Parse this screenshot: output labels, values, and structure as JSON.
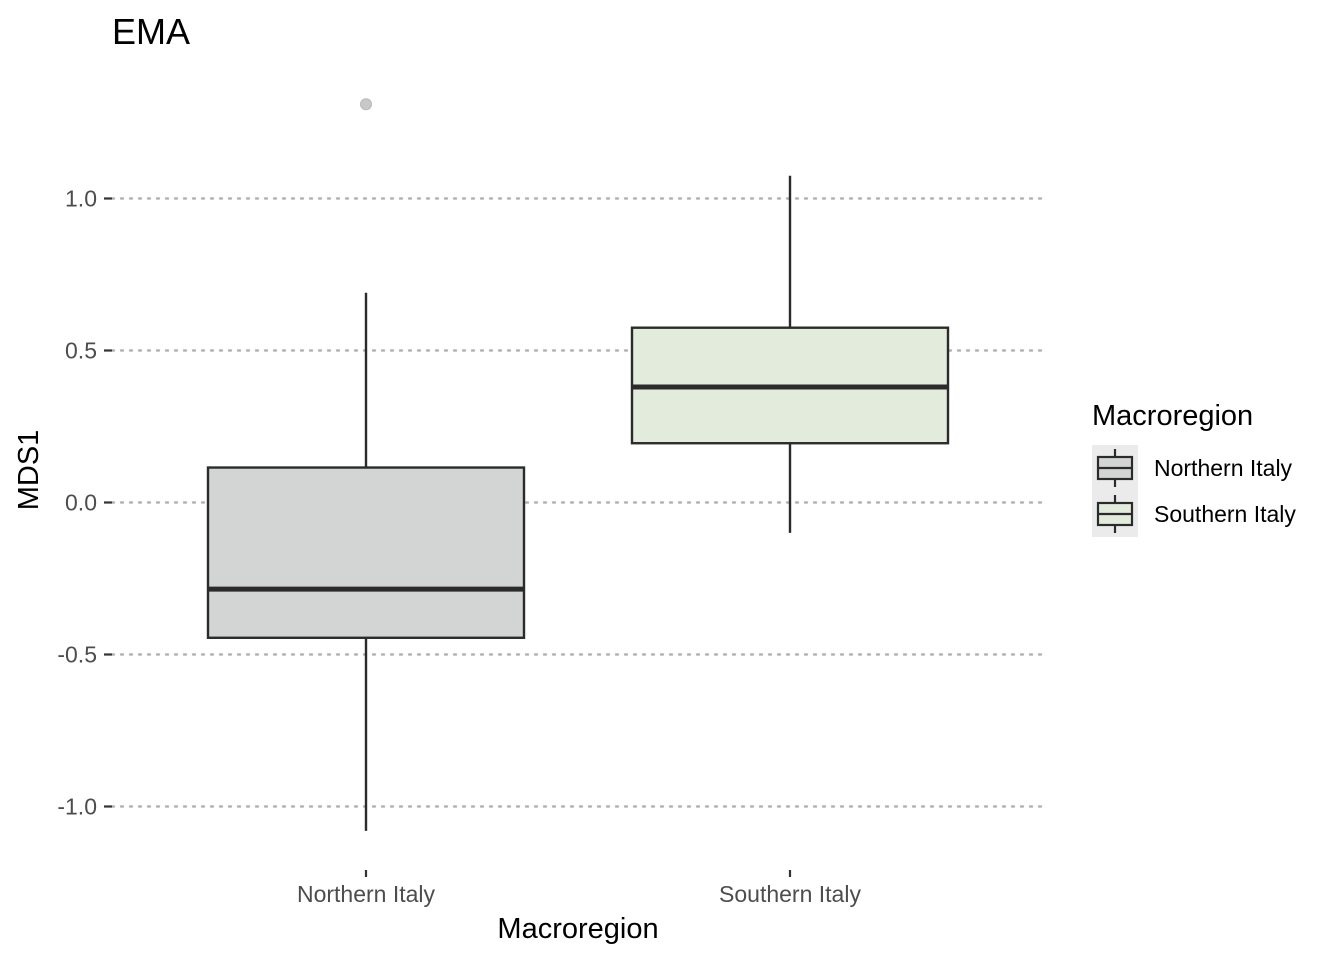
{
  "chart_data": {
    "type": "box",
    "title": "EMA",
    "xlabel": "Macroregion",
    "ylabel": "MDS1",
    "categories": [
      "Northern Italy",
      "Southern Italy"
    ],
    "y_ticks": [
      1.0,
      0.5,
      0.0,
      -0.5,
      -1.0
    ],
    "y_tick_labels": [
      "1.0",
      "0.5",
      "0.0",
      "-0.5",
      "-1.0"
    ],
    "ylim": [
      -1.15,
      1.43
    ],
    "grid": "horizontal dotted at major ticks",
    "boxes": [
      {
        "category": "Northern Italy",
        "whisker_low": -1.08,
        "q1": -0.445,
        "median": -0.285,
        "q3": 0.115,
        "whisker_high": 0.69,
        "outliers": [
          1.31
        ],
        "fill": "#d3d5d5"
      },
      {
        "category": "Southern Italy",
        "whisker_low": -0.1,
        "q1": 0.195,
        "median": 0.38,
        "q3": 0.575,
        "whisker_high": 1.075,
        "outliers": [],
        "fill": "#e3ebdc"
      }
    ],
    "legend": {
      "title": "Macroregion",
      "position": "right",
      "entries": [
        {
          "label": "Northern Italy",
          "fill": "#d3d5d5"
        },
        {
          "label": "Southern Italy",
          "fill": "#e3ebdc"
        }
      ]
    },
    "colors": {
      "box_stroke": "#2b2b2b",
      "grid": "#b3b3b3",
      "tick": "#333333",
      "outlier": "#c8c8c8",
      "legend_key_bg": "#ebebeb"
    }
  }
}
